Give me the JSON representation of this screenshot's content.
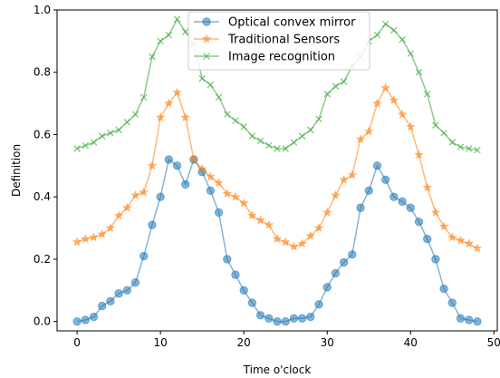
{
  "chart_data": {
    "type": "line",
    "title": "",
    "xlabel": "Time  o'clock",
    "ylabel": "Definition",
    "xlim": [
      -2.4,
      50.4
    ],
    "ylim": [
      -0.03,
      1.0
    ],
    "xticks": [
      0,
      10,
      20,
      30,
      40,
      50
    ],
    "yticks": [
      0.0,
      0.2,
      0.4,
      0.6,
      0.8,
      1.0
    ],
    "grid": false,
    "legend_position": "upper center",
    "x": [
      0,
      1,
      2,
      3,
      4,
      5,
      6,
      7,
      8,
      9,
      10,
      11,
      12,
      13,
      14,
      15,
      16,
      17,
      18,
      19,
      20,
      21,
      22,
      23,
      24,
      25,
      26,
      27,
      28,
      29,
      30,
      31,
      32,
      33,
      34,
      35,
      36,
      37,
      38,
      39,
      40,
      41,
      42,
      43,
      44,
      45,
      46,
      47,
      48
    ],
    "series": [
      {
        "name": "Optical convex mirror",
        "color": "#1f77b4",
        "marker": "circle",
        "values": [
          0.0,
          0.005,
          0.015,
          0.05,
          0.065,
          0.09,
          0.1,
          0.125,
          0.21,
          0.31,
          0.4,
          0.52,
          0.5,
          0.44,
          0.52,
          0.48,
          0.42,
          0.35,
          0.2,
          0.15,
          0.1,
          0.06,
          0.02,
          0.01,
          0.0,
          0.0,
          0.01,
          0.01,
          0.015,
          0.055,
          0.11,
          0.155,
          0.19,
          0.215,
          0.365,
          0.42,
          0.5,
          0.455,
          0.4,
          0.385,
          0.365,
          0.32,
          0.265,
          0.2,
          0.105,
          0.06,
          0.01,
          0.005,
          0.0
        ]
      },
      {
        "name": "Traditional Sensors",
        "color": "#ff7f0e",
        "marker": "star",
        "values": [
          0.255,
          0.265,
          0.27,
          0.28,
          0.3,
          0.34,
          0.365,
          0.405,
          0.415,
          0.5,
          0.655,
          0.7,
          0.735,
          0.655,
          0.52,
          0.49,
          0.465,
          0.445,
          0.41,
          0.4,
          0.38,
          0.34,
          0.325,
          0.31,
          0.265,
          0.255,
          0.24,
          0.25,
          0.275,
          0.3,
          0.35,
          0.405,
          0.455,
          0.47,
          0.585,
          0.61,
          0.7,
          0.75,
          0.71,
          0.665,
          0.625,
          0.535,
          0.43,
          0.35,
          0.305,
          0.27,
          0.26,
          0.25,
          0.235
        ]
      },
      {
        "name": "Image recognition",
        "color": "#2ca02c",
        "marker": "x",
        "values": [
          0.555,
          0.565,
          0.575,
          0.595,
          0.605,
          0.615,
          0.64,
          0.665,
          0.72,
          0.85,
          0.9,
          0.92,
          0.97,
          0.93,
          0.89,
          0.78,
          0.76,
          0.72,
          0.665,
          0.645,
          0.625,
          0.595,
          0.58,
          0.565,
          0.555,
          0.555,
          0.575,
          0.595,
          0.615,
          0.65,
          0.73,
          0.755,
          0.77,
          0.82,
          0.85,
          0.9,
          0.92,
          0.955,
          0.935,
          0.905,
          0.86,
          0.8,
          0.73,
          0.63,
          0.605,
          0.575,
          0.56,
          0.555,
          0.55
        ]
      }
    ]
  }
}
